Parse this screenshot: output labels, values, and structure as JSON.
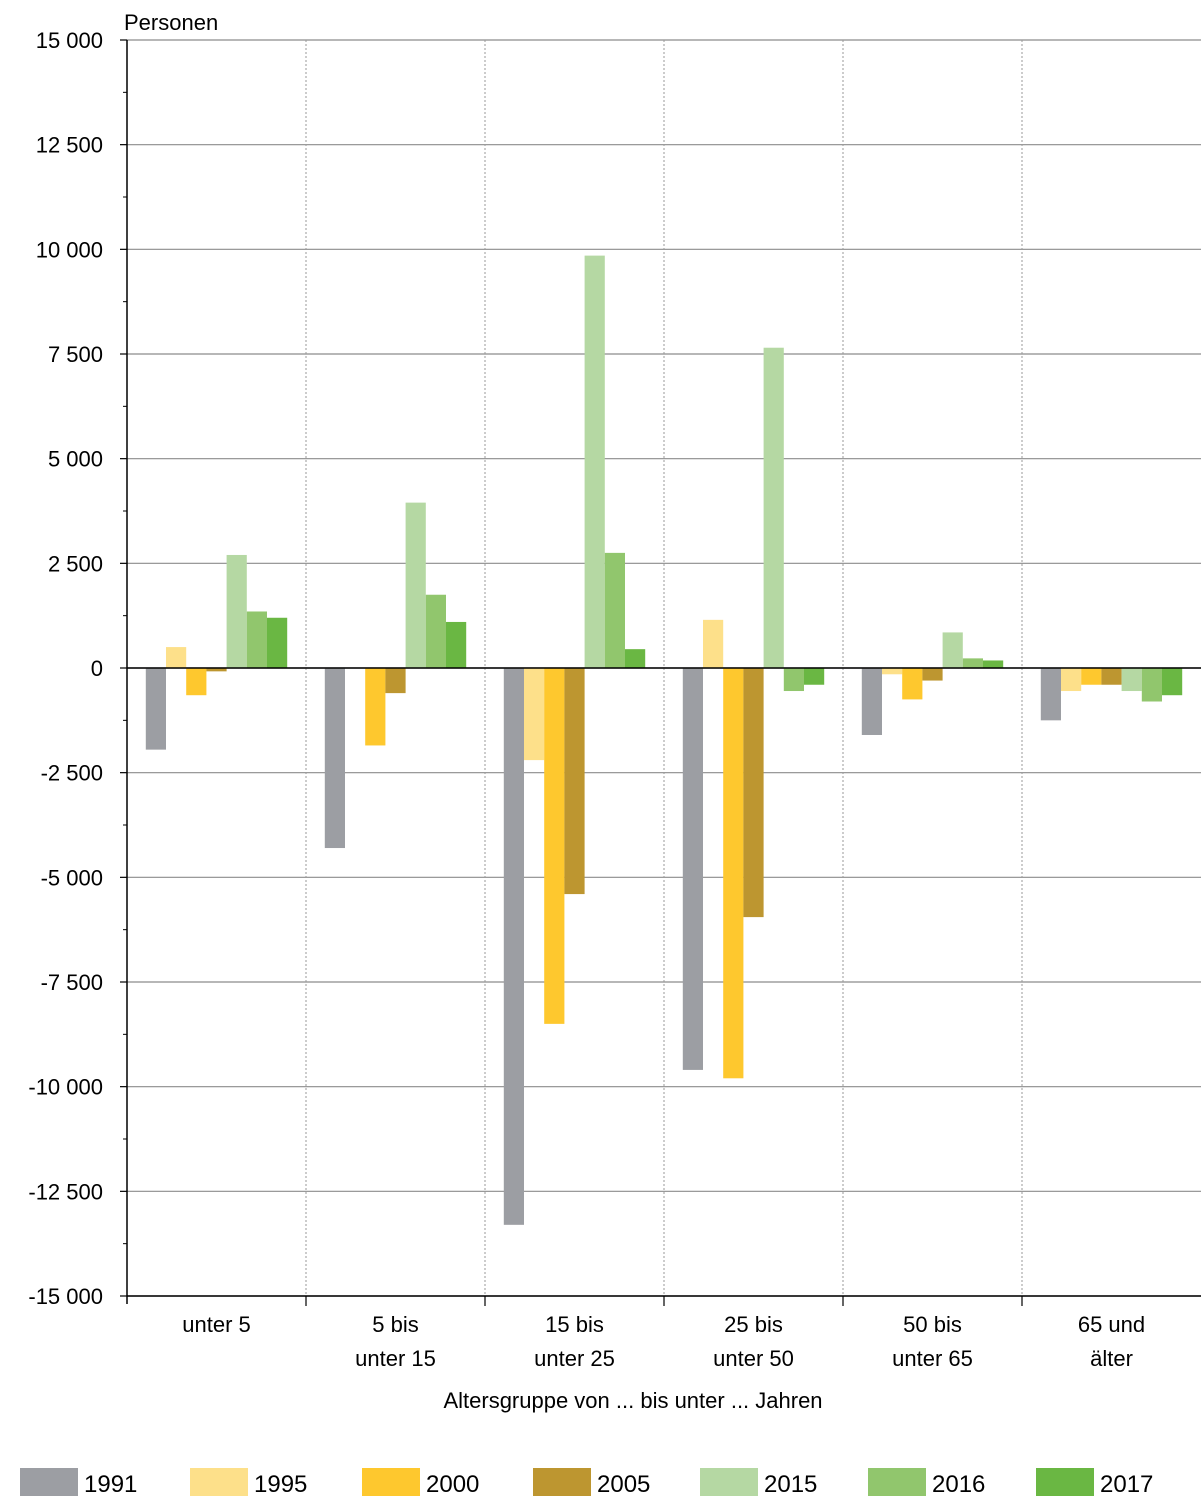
{
  "chart_data": {
    "type": "bar",
    "ylabel": "Personen",
    "xlabel": "Altersgruppe von ... bis unter ... Jahren",
    "ylim": [
      -15000,
      15000
    ],
    "yticks": [
      15000,
      12500,
      10000,
      7500,
      5000,
      2500,
      0,
      -2500,
      -5000,
      -7500,
      -10000,
      -12500,
      -15000
    ],
    "ytick_labels": [
      "15 000",
      "12 500",
      "10 000",
      "7 500",
      "5 000",
      "2 500",
      "0",
      "-2 500",
      "-5 000",
      "-7 500",
      "-10 000",
      "-12 500",
      "-15 000"
    ],
    "categories": [
      [
        "unter 5"
      ],
      [
        "5 bis",
        "unter 15"
      ],
      [
        "15 bis",
        "unter 25"
      ],
      [
        "25 bis",
        "unter 50"
      ],
      [
        "50 bis",
        "unter 65"
      ],
      [
        "65 und",
        "älter"
      ]
    ],
    "grid": true,
    "legend_position": "bottom",
    "series": [
      {
        "name": "1991",
        "color": "#9c9ea3",
        "values": [
          -1950,
          -4300,
          -13300,
          -9600,
          -1600,
          -1250
        ]
      },
      {
        "name": "1995",
        "color": "#fde08a",
        "values": [
          500,
          0,
          -2200,
          1150,
          -150,
          -550
        ]
      },
      {
        "name": "2000",
        "color": "#fec82e",
        "values": [
          -650,
          -1850,
          -8500,
          -9800,
          -750,
          -400
        ]
      },
      {
        "name": "2005",
        "color": "#bd9630",
        "values": [
          -80,
          -600,
          -5400,
          -5950,
          -300,
          -400
        ]
      },
      {
        "name": "2015",
        "color": "#b5d8a3",
        "values": [
          2700,
          3950,
          9850,
          7650,
          850,
          -550
        ]
      },
      {
        "name": "2016",
        "color": "#91c66d",
        "values": [
          1350,
          1750,
          2750,
          -550,
          230,
          -800
        ]
      },
      {
        "name": "2017",
        "color": "#6ab743",
        "values": [
          1200,
          1100,
          450,
          -400,
          180,
          -650
        ]
      }
    ]
  }
}
